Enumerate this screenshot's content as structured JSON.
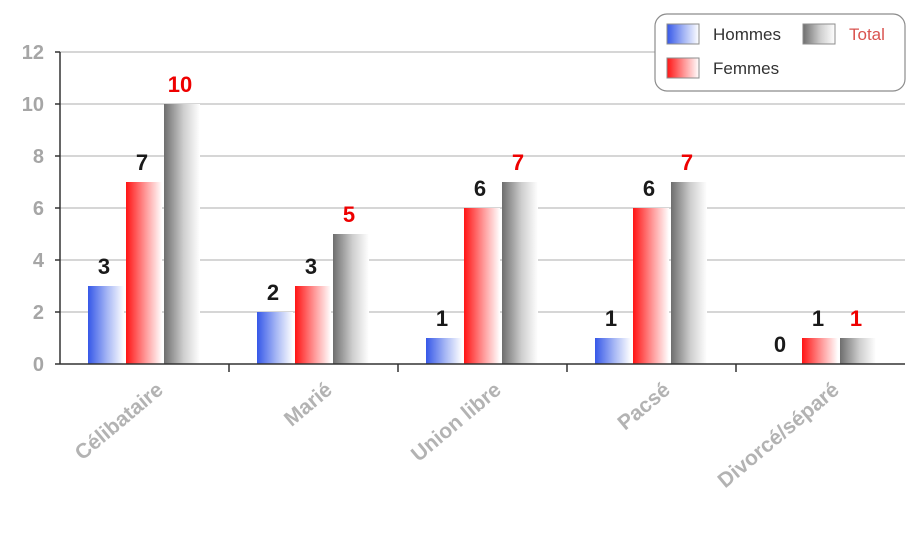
{
  "chart_data": {
    "type": "bar",
    "categories": [
      "Célibataire",
      "Marié",
      "Union libre",
      "Pacsé",
      "Divorcé/séparé"
    ],
    "series": [
      {
        "name": "Hommes",
        "values": [
          3,
          2,
          1,
          1,
          0
        ],
        "color": "#3a5fe0",
        "label_color": "#1a1a1a",
        "show_labels": [
          true,
          true,
          true,
          true,
          true
        ]
      },
      {
        "name": "Femmes",
        "values": [
          7,
          3,
          6,
          6,
          1
        ],
        "color": "#ff1a1a",
        "label_color": "#1a1a1a",
        "show_labels": [
          true,
          true,
          true,
          true,
          true
        ]
      },
      {
        "name": "Total",
        "values": [
          10,
          5,
          7,
          7,
          1
        ],
        "color": "#7a7a7a",
        "label_color": "#ee0000",
        "show_labels": [
          true,
          true,
          true,
          true,
          true
        ]
      }
    ],
    "ylim": [
      0,
      12
    ],
    "yticks": [
      0,
      2,
      4,
      6,
      8,
      10,
      12
    ],
    "grid": true,
    "legend_position": "top-right",
    "title": "",
    "xlabel": "",
    "ylabel": ""
  }
}
